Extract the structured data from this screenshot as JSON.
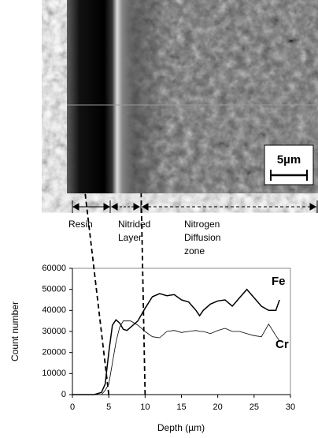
{
  "image": {
    "scale_label": "5µm"
  },
  "zones": [
    {
      "lines": [
        "Resin"
      ]
    },
    {
      "lines": [
        "Nitrided",
        "Layer"
      ]
    },
    {
      "lines": [
        "Nitrogen",
        "Diffusion",
        "zone"
      ]
    }
  ],
  "chart_data": {
    "type": "line",
    "xlabel": "Depth (µm)",
    "ylabel": "Count number",
    "x": [
      0,
      3,
      4,
      4.5,
      5,
      5.5,
      6,
      6.5,
      7,
      7.5,
      8,
      9,
      10,
      11,
      12,
      13,
      14,
      15,
      16,
      17,
      17.5,
      18,
      19,
      20,
      21,
      22,
      23,
      24,
      25,
      26,
      27,
      28,
      28.5
    ],
    "series": [
      {
        "name": "Fe",
        "color": "#000000",
        "values": [
          0,
          0,
          1000,
          5000,
          20000,
          33000,
          35500,
          34000,
          31000,
          30500,
          32000,
          35000,
          41000,
          46500,
          48000,
          47000,
          47500,
          45000,
          44000,
          40000,
          37500,
          40000,
          43000,
          44500,
          45000,
          42000,
          46000,
          50000,
          46000,
          42000,
          40000,
          40000,
          45000
        ]
      },
      {
        "name": "Cr",
        "color": "#000000",
        "values": [
          0,
          0,
          0,
          2000,
          5000,
          15000,
          25000,
          32000,
          35000,
          35000,
          35000,
          33000,
          30000,
          27500,
          27000,
          30000,
          30500,
          29500,
          30000,
          30500,
          30000,
          30000,
          29000,
          30500,
          31500,
          30000,
          30000,
          29000,
          28000,
          27500,
          33500,
          28000,
          25500
        ]
      }
    ],
    "xlim": [
      0,
      30
    ],
    "xticks": [
      0,
      5,
      10,
      15,
      20,
      25,
      30
    ],
    "ylim": [
      0,
      60000
    ],
    "yticks": [
      0,
      10000,
      20000,
      30000,
      40000,
      50000,
      60000
    ],
    "vlines": [
      5,
      10
    ]
  }
}
